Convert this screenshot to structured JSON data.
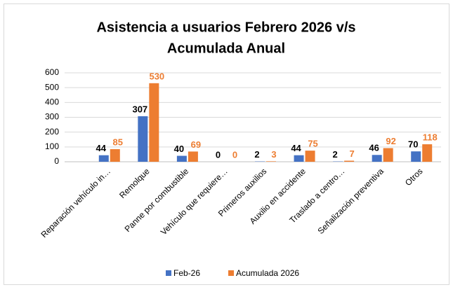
{
  "chart_data": {
    "type": "bar",
    "title": [
      "Asistencia a usuarios Febrero 2026 v/s",
      "Acumulada Anual"
    ],
    "categories": [
      "Reparación vehículo in…",
      "Remolque",
      "Panne por combustible",
      "Vehículo que requiere…",
      "Primeros auxilios",
      "Auxilio en accidente",
      "Traslado  a centro…",
      "Señalización  preventiva",
      "Otros"
    ],
    "series": [
      {
        "name": "Feb-26",
        "color": "#4472c4",
        "label_color": "#000000",
        "values": [
          44,
          307,
          40,
          0,
          2,
          44,
          2,
          46,
          70
        ]
      },
      {
        "name": "Acumulada  2026",
        "color": "#ed7d31",
        "label_color": "#ed7d31",
        "values": [
          85,
          530,
          69,
          0,
          3,
          75,
          7,
          92,
          118
        ]
      }
    ],
    "ylim": [
      0,
      600
    ],
    "yticks": [
      0,
      100,
      200,
      300,
      400,
      500,
      600
    ],
    "grid": true,
    "legend": "bottom"
  }
}
